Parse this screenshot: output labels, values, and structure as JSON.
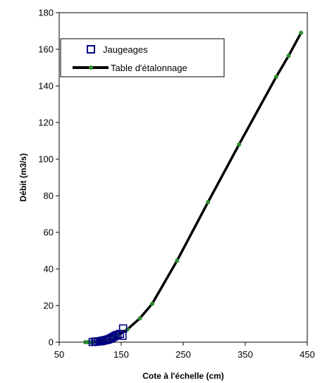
{
  "chart_data": {
    "type": "scatter",
    "title": "",
    "xlabel": "Cote à l'échelle (cm)",
    "ylabel": "Débit (m3/s)",
    "xlim": [
      50,
      450
    ],
    "ylim": [
      0,
      180
    ],
    "xticks": [
      "50",
      "150",
      "250",
      "350",
      "450"
    ],
    "xtick_values": [
      50,
      150,
      250,
      350,
      450
    ],
    "yticks": [
      "0",
      "20",
      "40",
      "60",
      "80",
      "100",
      "120",
      "140",
      "160",
      "180"
    ],
    "ytick_values": [
      0,
      20,
      40,
      60,
      80,
      100,
      120,
      140,
      160,
      180
    ],
    "grid": false,
    "legend_position": "top-left",
    "series": [
      {
        "name": "Jaugeages",
        "kind": "scatter",
        "marker": "open-square",
        "color": "#000080",
        "x": [
          104,
          108,
          110,
          113,
          116,
          118,
          120,
          123,
          126,
          129,
          132,
          135,
          138,
          141,
          144,
          148,
          152,
          153
        ],
        "y": [
          0.1,
          0.2,
          0.3,
          0.4,
          0.5,
          0.6,
          0.8,
          1.0,
          1.2,
          1.5,
          1.9,
          2.4,
          3.0,
          3.6,
          4.0,
          4.5,
          3.5,
          7.5
        ]
      },
      {
        "name": "Table d'étalonnage",
        "kind": "line",
        "marker": "dot",
        "color": "#000000",
        "marker_color": "#2e8b2e",
        "x": [
          92,
          96,
          100,
          105,
          112,
          120,
          127,
          135,
          145,
          160,
          180,
          200,
          240,
          290,
          340,
          400,
          420,
          440
        ],
        "y": [
          0,
          0,
          0,
          0.1,
          0.3,
          0.6,
          1.2,
          2.2,
          3.8,
          7,
          13,
          21,
          44.5,
          76.5,
          108,
          145,
          156.5,
          169
        ]
      }
    ]
  }
}
